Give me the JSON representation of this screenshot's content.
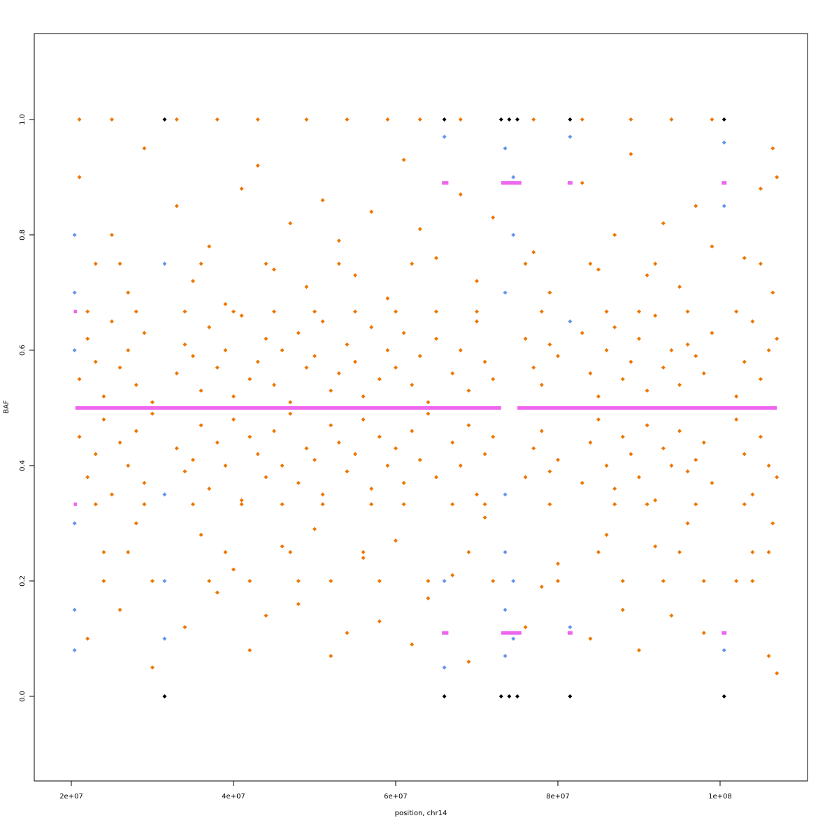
{
  "chart_data": {
    "type": "scatter",
    "x_label": "position, chr14",
    "y_label": "BAF",
    "xlim": [
      15430000,
      110780000
    ],
    "ylim": [
      -0.1467,
      1.149
    ],
    "xticks": [
      {
        "value": 20000000,
        "label": "2e+07"
      },
      {
        "value": 40000000,
        "label": "4e+07"
      },
      {
        "value": 60000000,
        "label": "6e+07"
      },
      {
        "value": 80000000,
        "label": "8e+07"
      },
      {
        "value": 100000000,
        "label": "1e+08"
      }
    ],
    "yticks": [
      {
        "value": 0,
        "label": "0.0"
      },
      0.2,
      0.4,
      0.6,
      0.8,
      {
        "value": 1,
        "label": "1.0"
      }
    ],
    "series": [
      {
        "type": "scatter",
        "color": "#ee7600",
        "x": [
          21000000.0,
          22000000.0,
          23000000.0,
          24000000.0,
          25000000.0,
          26000000.0,
          27000000.0,
          28000000.0,
          29000000.0,
          30000000.0,
          33000000.0,
          34000000.0,
          35000000.0,
          36000000.0,
          37000000.0,
          38000000.0,
          39000000.0,
          40000000.0,
          41000000.0,
          42000000.0,
          43000000.0,
          44000000.0,
          45000000.0,
          46000000.0,
          47000000.0,
          48000000.0,
          49000000.0,
          50000000.0,
          51000000.0,
          52000000.0,
          53000000.0,
          54000000.0,
          55000000.0,
          56000000.0,
          57000000.0,
          58000000.0,
          59000000.0,
          60000000.0,
          61000000.0,
          62000000.0,
          63000000.0,
          64000000.0,
          65000000.0,
          67000000.0,
          68000000.0,
          69000000.0,
          70000000.0,
          71000000.0,
          72000000.0,
          76000000.0,
          77000000.0,
          78000000.0,
          79000000.0,
          80000000.0,
          83000000.0,
          84000000.0,
          85000000.0,
          86000000.0,
          87000000.0,
          88000000.0,
          89000000.0,
          90000000.0,
          91000000.0,
          92000000.0,
          93000000.0,
          94000000.0,
          95000000.0,
          96000000.0,
          97000000.0,
          98000000.0,
          99000000.0,
          102000000.0,
          103000000.0,
          104000000.0,
          105000000.0,
          106000000.0,
          106500000.0,
          107000000.0
        ],
        "values": [
          0.55,
          0.62,
          0.58,
          0.52,
          0.65,
          0.57,
          0.6,
          0.54,
          0.63,
          0.51,
          0.56,
          0.61,
          0.59,
          0.53,
          0.64,
          0.57,
          0.6,
          0.52,
          0.66,
          0.55,
          0.58,
          0.62,
          0.54,
          0.6,
          0.51,
          0.63,
          0.57,
          0.59,
          0.65,
          0.53,
          0.56,
          0.61,
          0.58,
          0.52,
          0.64,
          0.55,
          0.6,
          0.57,
          0.63,
          0.54,
          0.59,
          0.51,
          0.62,
          0.56,
          0.6,
          0.53,
          0.65,
          0.58,
          0.55,
          0.62,
          0.57,
          0.54,
          0.61,
          0.59,
          0.63,
          0.56,
          0.52,
          0.6,
          0.64,
          0.55,
          0.58,
          0.62,
          0.53,
          0.66,
          0.57,
          0.6,
          0.54,
          0.61,
          0.59,
          0.56,
          0.63,
          0.52,
          0.58,
          0.65,
          0.55,
          0.6,
          0.7,
          0.62
        ]
      },
      {
        "type": "scatter",
        "color": "#ee7600",
        "x": [
          21000000.0,
          22000000.0,
          23000000.0,
          24000000.0,
          25000000.0,
          26000000.0,
          27000000.0,
          28000000.0,
          29000000.0,
          30000000.0,
          33000000.0,
          34000000.0,
          35000000.0,
          36000000.0,
          37000000.0,
          38000000.0,
          39000000.0,
          40000000.0,
          41000000.0,
          42000000.0,
          43000000.0,
          44000000.0,
          45000000.0,
          46000000.0,
          47000000.0,
          48000000.0,
          49000000.0,
          50000000.0,
          51000000.0,
          52000000.0,
          53000000.0,
          54000000.0,
          55000000.0,
          56000000.0,
          57000000.0,
          58000000.0,
          59000000.0,
          60000000.0,
          61000000.0,
          62000000.0,
          63000000.0,
          64000000.0,
          65000000.0,
          67000000.0,
          68000000.0,
          69000000.0,
          70000000.0,
          71000000.0,
          72000000.0,
          76000000.0,
          77000000.0,
          78000000.0,
          79000000.0,
          80000000.0,
          83000000.0,
          84000000.0,
          85000000.0,
          86000000.0,
          87000000.0,
          88000000.0,
          89000000.0,
          90000000.0,
          91000000.0,
          92000000.0,
          93000000.0,
          94000000.0,
          95000000.0,
          96000000.0,
          97000000.0,
          98000000.0,
          99000000.0,
          102000000.0,
          103000000.0,
          104000000.0,
          105000000.0,
          106000000.0,
          106500000.0,
          107000000.0
        ],
        "values": [
          0.45,
          0.38,
          0.42,
          0.48,
          0.35,
          0.44,
          0.4,
          0.46,
          0.37,
          0.49,
          0.43,
          0.39,
          0.41,
          0.47,
          0.36,
          0.44,
          0.4,
          0.48,
          0.34,
          0.45,
          0.42,
          0.38,
          0.46,
          0.4,
          0.49,
          0.37,
          0.43,
          0.41,
          0.35,
          0.47,
          0.44,
          0.39,
          0.42,
          0.48,
          0.36,
          0.45,
          0.4,
          0.43,
          0.37,
          0.46,
          0.41,
          0.49,
          0.38,
          0.44,
          0.4,
          0.47,
          0.35,
          0.42,
          0.45,
          0.38,
          0.43,
          0.46,
          0.39,
          0.41,
          0.37,
          0.44,
          0.48,
          0.4,
          0.36,
          0.45,
          0.42,
          0.38,
          0.47,
          0.34,
          0.43,
          0.4,
          0.46,
          0.39,
          0.41,
          0.44,
          0.37,
          0.48,
          0.42,
          0.35,
          0.45,
          0.4,
          0.3,
          0.38
        ]
      },
      {
        "type": "scatter",
        "color": "#ee7600",
        "x": [
          21000000.0,
          22000000.0,
          23000000.0,
          24000000.0,
          25000000.0,
          26000000.0,
          27000000.0,
          28000000.0,
          29000000.0,
          30000000.0,
          33000000.0,
          34000000.0,
          35000000.0,
          36000000.0,
          37000000.0,
          38000000.0,
          39000000.0,
          40000000.0,
          41000000.0,
          42000000.0,
          43000000.0,
          44000000.0,
          45000000.0,
          46000000.0,
          47000000.0,
          48000000.0,
          49000000.0,
          50000000.0,
          51000000.0,
          52000000.0,
          53000000.0,
          54000000.0,
          55000000.0,
          56000000.0,
          57000000.0,
          58000000.0,
          59000000.0,
          60000000.0,
          61000000.0,
          62000000.0,
          63000000.0,
          64000000.0,
          65000000.0,
          67000000.0,
          68000000.0,
          69000000.0,
          70000000.0,
          71000000.0,
          72000000.0,
          76000000.0,
          77000000.0,
          78000000.0,
          79000000.0,
          80000000.0,
          83000000.0,
          84000000.0,
          85000000.0,
          86000000.0,
          87000000.0,
          88000000.0,
          89000000.0,
          90000000.0,
          91000000.0,
          92000000.0,
          93000000.0,
          94000000.0,
          95000000.0,
          96000000.0,
          97000000.0,
          98000000.0,
          99000000.0,
          102000000.0,
          103000000.0,
          104000000.0,
          105000000.0,
          106000000.0,
          106500000.0,
          107000000.0
        ],
        "values": [
          0.9,
          0.1,
          0.75,
          0.25,
          0.8,
          0.15,
          0.7,
          0.3,
          0.95,
          0.05,
          0.85,
          0.12,
          0.72,
          0.28,
          0.78,
          0.18,
          0.68,
          0.22,
          0.88,
          0.08,
          0.92,
          0.14,
          0.74,
          0.26,
          0.82,
          0.16,
          0.71,
          0.29,
          0.86,
          0.07,
          0.79,
          0.11,
          0.73,
          0.24,
          0.84,
          0.13,
          0.69,
          0.27,
          0.93,
          0.09,
          0.81,
          0.17,
          0.76,
          0.21,
          0.87,
          0.06,
          0.72,
          0.31,
          0.83,
          0.12,
          0.77,
          0.19,
          0.7,
          0.23,
          0.89,
          0.1,
          0.74,
          0.28,
          0.8,
          0.15,
          0.94,
          0.08,
          0.73,
          0.26,
          0.82,
          0.14,
          0.71,
          0.3,
          0.85,
          0.11,
          0.78,
          0.2,
          0.76,
          0.25,
          0.88,
          0.07,
          0.95,
          0.04
        ]
      },
      {
        "type": "scatter",
        "color": "#ee7600",
        "x": [
          21000000.0,
          22000000.0,
          23000000.0,
          24000000.0,
          25000000.0,
          26000000.0,
          27000000.0,
          28000000.0,
          29000000.0,
          30000000.0,
          33000000.0,
          34000000.0,
          35000000.0,
          36000000.0,
          37000000.0,
          38000000.0,
          39000000.0,
          40000000.0,
          41000000.0,
          42000000.0,
          43000000.0,
          44000000.0,
          45000000.0,
          46000000.0,
          47000000.0,
          48000000.0,
          49000000.0,
          50000000.0,
          51000000.0,
          52000000.0,
          53000000.0,
          54000000.0,
          55000000.0,
          56000000.0,
          57000000.0,
          58000000.0,
          59000000.0,
          60000000.0,
          61000000.0,
          62000000.0,
          63000000.0,
          64000000.0,
          65000000.0,
          67000000.0,
          68000000.0,
          69000000.0,
          70000000.0,
          71000000.0,
          72000000.0,
          76000000.0,
          77000000.0,
          78000000.0,
          79000000.0,
          80000000.0,
          83000000.0,
          84000000.0,
          85000000.0,
          86000000.0,
          87000000.0,
          88000000.0,
          89000000.0,
          90000000.0,
          91000000.0,
          92000000.0,
          93000000.0,
          94000000.0,
          95000000.0,
          96000000.0,
          97000000.0,
          98000000.0,
          99000000.0,
          102000000.0,
          103000000.0,
          104000000.0,
          105000000.0,
          106000000.0,
          106500000.0,
          107000000.0
        ],
        "values": [
          1,
          0.667,
          0.333,
          0.2,
          1,
          0.75,
          0.25,
          0.667,
          0.333,
          0.2,
          1,
          0.667,
          0.333,
          0.75,
          0.2,
          1,
          0.25,
          0.667,
          0.333,
          0.2,
          1,
          0.75,
          0.667,
          0.333,
          0.25,
          0.2,
          1,
          0.667,
          0.333,
          0.2,
          0.75,
          1,
          0.667,
          0.25,
          0.333,
          0.2,
          1,
          0.667,
          0.333,
          0.75,
          1,
          0.2,
          0.667,
          0.333,
          1,
          0.25,
          0.667,
          0.333,
          0.2,
          0.75,
          1,
          0.667,
          0.333,
          0.2,
          1,
          0.75,
          0.25,
          0.667,
          0.333,
          0.2,
          1,
          0.667,
          0.333,
          0.75,
          0.2,
          1,
          0.25,
          0.667,
          0.333,
          0.2,
          1,
          0.667,
          0.333,
          0.2,
          0.75,
          0.25,
          0.5,
          0.9
        ]
      },
      {
        "type": "scatter",
        "color": "#6495ed",
        "x": [
          20400000.0,
          20400000.0,
          20400000.0,
          20400000.0,
          20400000.0,
          20400000.0,
          31500000.0,
          31500000.0,
          31500000.0,
          31500000.0,
          66000000.0,
          66000000.0,
          66000000.0,
          73500000.0,
          73500000.0,
          73500000.0,
          73500000.0,
          73500000.0,
          73500000.0,
          74500000.0,
          74500000.0,
          74500000.0,
          74500000.0,
          81500000.0,
          81500000.0,
          81500000.0,
          100500000.0,
          100500000.0,
          100500000.0
        ],
        "values": [
          0.8,
          0.7,
          0.6,
          0.3,
          0.15,
          0.08,
          0.75,
          0.35,
          0.2,
          0.1,
          0.97,
          0.2,
          0.05,
          0.95,
          0.7,
          0.35,
          0.25,
          0.15,
          0.07,
          0.9,
          0.8,
          0.2,
          0.1,
          0.97,
          0.65,
          0.12,
          0.96,
          0.85,
          0.08
        ]
      },
      {
        "type": "scatter",
        "color": "#000000",
        "x": [
          31500000.0,
          31500000.0,
          66000000.0,
          66000000.0,
          73000000.0,
          74000000.0,
          75000000.0,
          73000000.0,
          74000000.0,
          75000000.0,
          81500000.0,
          81500000.0,
          100500000.0,
          100500000.0
        ],
        "values": [
          1,
          0,
          1,
          0,
          1,
          1,
          1,
          0,
          0,
          0,
          1,
          0,
          1,
          0
        ]
      },
      {
        "type": "line",
        "color": "#ee66ee",
        "x": [
          20500000.0,
          73000000.0,
          null,
          75000000.0,
          107000000.0,
          null,
          65700000.0,
          66500000.0,
          null,
          73000000.0,
          75500000.0,
          null,
          81200000.0,
          81800000.0,
          null,
          100200000.0,
          100800000.0,
          null,
          65700000.0,
          66500000.0,
          null,
          73000000.0,
          75500000.0,
          null,
          81200000.0,
          81800000.0,
          null,
          100200000.0,
          100800000.0,
          null,
          20300000.0,
          20700000.0,
          null,
          20300000.0,
          20700000.0
        ],
        "values": [
          0.5,
          0.5,
          null,
          0.5,
          0.5,
          null,
          0.89,
          0.89,
          null,
          0.89,
          0.89,
          null,
          0.89,
          0.89,
          null,
          0.89,
          0.89,
          null,
          0.11,
          0.11,
          null,
          0.11,
          0.11,
          null,
          0.11,
          0.11,
          null,
          0.11,
          0.11,
          null,
          0.667,
          0.667,
          null,
          0.333,
          0.333
        ]
      }
    ]
  }
}
